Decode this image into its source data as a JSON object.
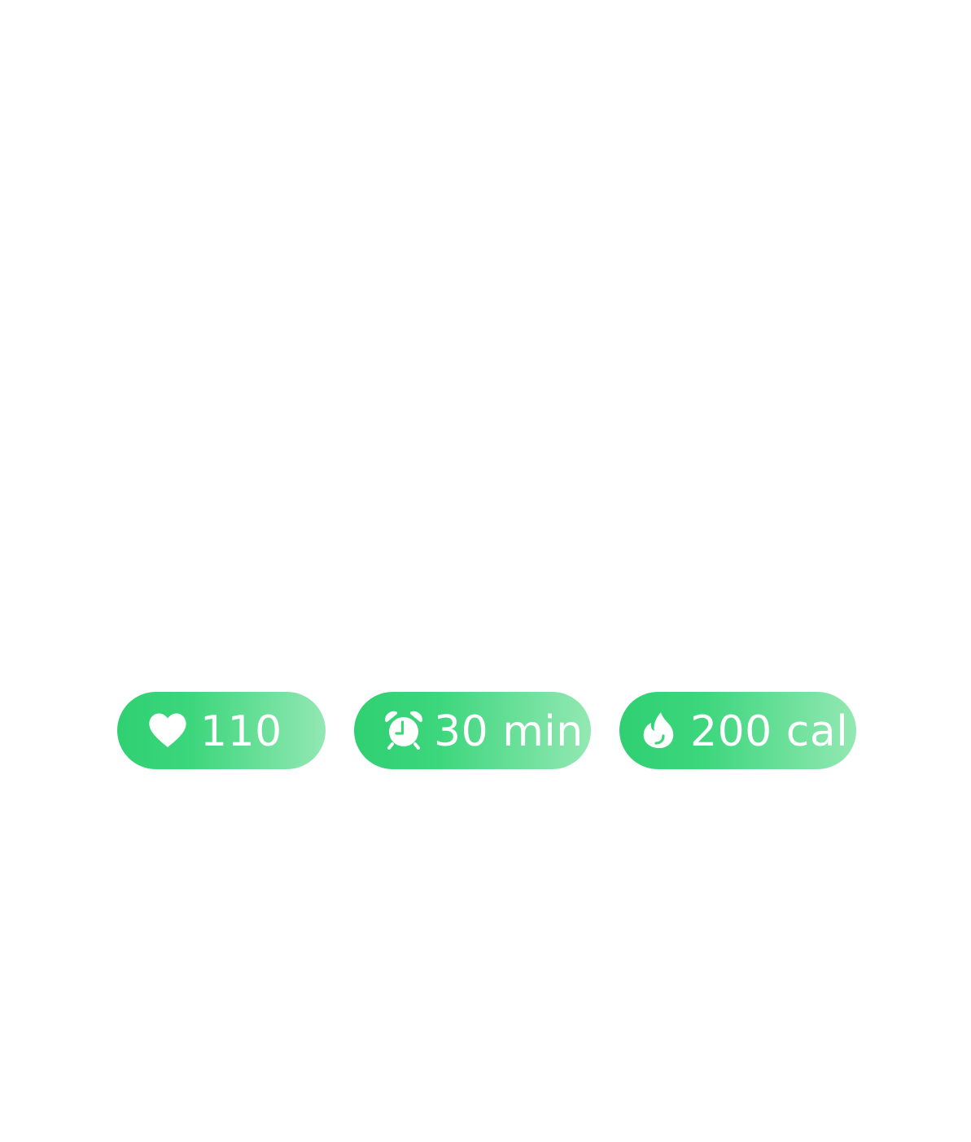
{
  "stats": {
    "heart_rate": {
      "icon": "heart-icon",
      "value": "110"
    },
    "duration": {
      "icon": "alarm-clock-icon",
      "value": "30 min"
    },
    "calories": {
      "icon": "flame-icon",
      "value": "200 cal"
    }
  },
  "colors": {
    "pill_gradient_start": "#2fd072",
    "pill_gradient_end": "#93e8b3",
    "text": "#ffffff",
    "background": "#ffffff"
  }
}
